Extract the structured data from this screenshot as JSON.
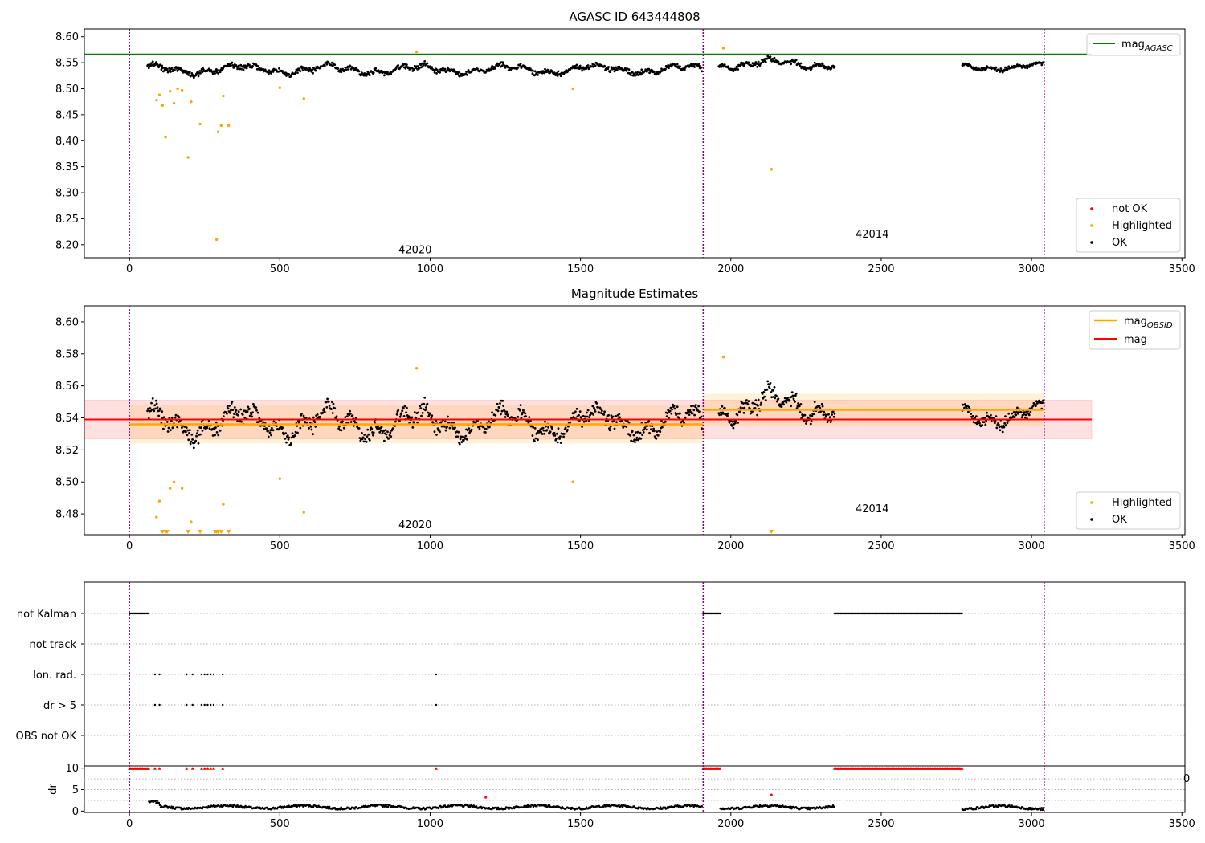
{
  "chart_data": [
    {
      "type": "scatter",
      "title": "AGASC ID 643444808",
      "xlim": [
        -150,
        3510
      ],
      "ylim": [
        8.175,
        8.615
      ],
      "xticks": [
        0,
        500,
        1000,
        1500,
        2000,
        2500,
        3000,
        3500
      ],
      "yticks": [
        8.2,
        8.25,
        8.3,
        8.35,
        8.4,
        8.45,
        8.5,
        8.55,
        8.6
      ],
      "ytick_labels": [
        "8.20",
        "8.25",
        "8.30",
        "8.35",
        "8.40",
        "8.45",
        "8.50",
        "8.55",
        "8.60"
      ],
      "obs_boundaries": [
        0,
        1908,
        3042
      ],
      "obs_labels": [
        {
          "text": "42020",
          "x": 950,
          "y": 8.19
        },
        {
          "text": "42014",
          "x": 2470,
          "y": 8.22
        }
      ],
      "mag_agasc": {
        "label": "mag_AGASC",
        "value": 8.566,
        "x_start": -150,
        "x_end": 3200,
        "color": "#008000"
      },
      "legend_upper": {
        "line_label": "mag",
        "sub": "AGASC"
      },
      "legend_lower": [
        "not OK",
        "Highlighted",
        "OK"
      ],
      "colors": {
        "ok": "#000000",
        "highlighted": "#ffa500",
        "not_ok": "#ff0000",
        "boundary": "#800080"
      },
      "highlighted_points": [
        [
          90,
          8.478
        ],
        [
          100,
          8.488
        ],
        [
          110,
          8.468
        ],
        [
          120,
          8.407
        ],
        [
          135,
          8.495
        ],
        [
          148,
          8.472
        ],
        [
          160,
          8.5
        ],
        [
          175,
          8.497
        ],
        [
          195,
          8.368
        ],
        [
          205,
          8.475
        ],
        [
          235,
          8.432
        ],
        [
          290,
          8.21
        ],
        [
          295,
          8.417
        ],
        [
          305,
          8.429
        ],
        [
          312,
          8.486
        ],
        [
          330,
          8.429
        ],
        [
          500,
          8.502
        ],
        [
          580,
          8.481
        ],
        [
          955,
          8.571
        ],
        [
          1475,
          8.5
        ],
        [
          1975,
          8.578
        ],
        [
          2135,
          8.345
        ]
      ],
      "ok_segments": [
        {
          "x_start": 60,
          "x_end": 1905,
          "base": 8.537,
          "amp": 0.012
        },
        {
          "x_start": 1960,
          "x_end": 2345,
          "base": 8.548,
          "amp": 0.012
        },
        {
          "x_start": 2770,
          "x_end": 3040,
          "base": 8.542,
          "amp": 0.009
        }
      ]
    },
    {
      "type": "scatter",
      "title": "Magnitude Estimates",
      "xlim": [
        -150,
        3510
      ],
      "ylim": [
        8.467,
        8.61
      ],
      "xticks": [
        0,
        500,
        1000,
        1500,
        2000,
        2500,
        3000,
        3500
      ],
      "yticks": [
        8.48,
        8.5,
        8.52,
        8.54,
        8.56,
        8.58,
        8.6
      ],
      "ytick_labels": [
        "8.48",
        "8.50",
        "8.52",
        "8.54",
        "8.56",
        "8.58",
        "8.60"
      ],
      "obs_labels": [
        {
          "text": "42020",
          "x": 950,
          "y": 8.473
        },
        {
          "text": "42014",
          "x": 2470,
          "y": 8.483
        }
      ],
      "mag_obsid": [
        {
          "x_start": 0,
          "x_end": 1908,
          "value": 8.536,
          "band": [
            8.524,
            8.548
          ]
        },
        {
          "x_start": 1908,
          "x_end": 3042,
          "value": 8.545,
          "band": [
            8.535,
            8.555
          ]
        }
      ],
      "mag": {
        "value": 8.539,
        "x_start": -150,
        "x_end": 3200,
        "band": [
          8.527,
          8.551
        ]
      },
      "legend_upper": [
        {
          "label": "mag",
          "sub": "OBSID",
          "color": "#ffa500"
        },
        {
          "label": "mag",
          "color": "#ff0000"
        }
      ],
      "legend_lower": [
        "Highlighted",
        "OK"
      ],
      "highlighted_points": [
        [
          90,
          8.478
        ],
        [
          100,
          8.488
        ],
        [
          135,
          8.496
        ],
        [
          148,
          8.5
        ],
        [
          175,
          8.496
        ],
        [
          205,
          8.475
        ],
        [
          312,
          8.486
        ],
        [
          500,
          8.502
        ],
        [
          580,
          8.481
        ],
        [
          955,
          8.571
        ],
        [
          1475,
          8.5
        ],
        [
          1975,
          8.578
        ]
      ],
      "clipped_markers_x": [
        110,
        120,
        125,
        195,
        235,
        285,
        290,
        295,
        305,
        330,
        2135
      ]
    },
    {
      "type": "scatter",
      "title": "",
      "xlim": [
        -150,
        3510
      ],
      "xticks": [
        0,
        500,
        1000,
        1500,
        2000,
        2500,
        3000,
        3500
      ],
      "flag_rows": [
        "not Kalman",
        "not track",
        "Ion. rad.",
        "dr > 5",
        "OBS not OK"
      ],
      "not_kalman_ranges": [
        [
          0,
          65
        ],
        [
          1908,
          1965
        ],
        [
          2345,
          2770
        ]
      ],
      "ion_rad_x": [
        85,
        100,
        190,
        210,
        240,
        250,
        260,
        270,
        280,
        310,
        1020
      ],
      "dr_gt5_x": [
        85,
        100,
        190,
        210,
        240,
        250,
        260,
        270,
        280,
        310,
        1020
      ]
    },
    {
      "type": "scatter",
      "title": "",
      "ylabel": "dr",
      "xlim": [
        -150,
        3510
      ],
      "ylim": [
        -0.3,
        10.5
      ],
      "yticks": [
        0,
        5,
        10
      ],
      "ytick_labels": [
        "0",
        "5",
        "10"
      ],
      "xticks": [
        0,
        500,
        1000,
        1500,
        2000,
        2500,
        3000,
        3500
      ],
      "xtick_labels": [
        "0",
        "500",
        "1000",
        "1500",
        "2000",
        "2500",
        "3000",
        "3500"
      ],
      "partial_label": "0",
      "red_clipped_ranges": [
        [
          0,
          65
        ],
        [
          1908,
          1965
        ],
        [
          2345,
          2770
        ]
      ],
      "red_clipped_x": [
        85,
        100,
        190,
        210,
        240,
        250,
        260,
        270,
        280,
        310,
        1020
      ],
      "red_points": [
        [
          1185,
          3.2
        ],
        [
          2135,
          3.8
        ]
      ],
      "ok_segments": [
        {
          "x_start": 65,
          "x_end": 1905,
          "base": 0.7
        },
        {
          "x_start": 1965,
          "x_end": 2345,
          "base": 0.7
        },
        {
          "x_start": 2770,
          "x_end": 3040,
          "base": 0.6
        }
      ]
    }
  ]
}
